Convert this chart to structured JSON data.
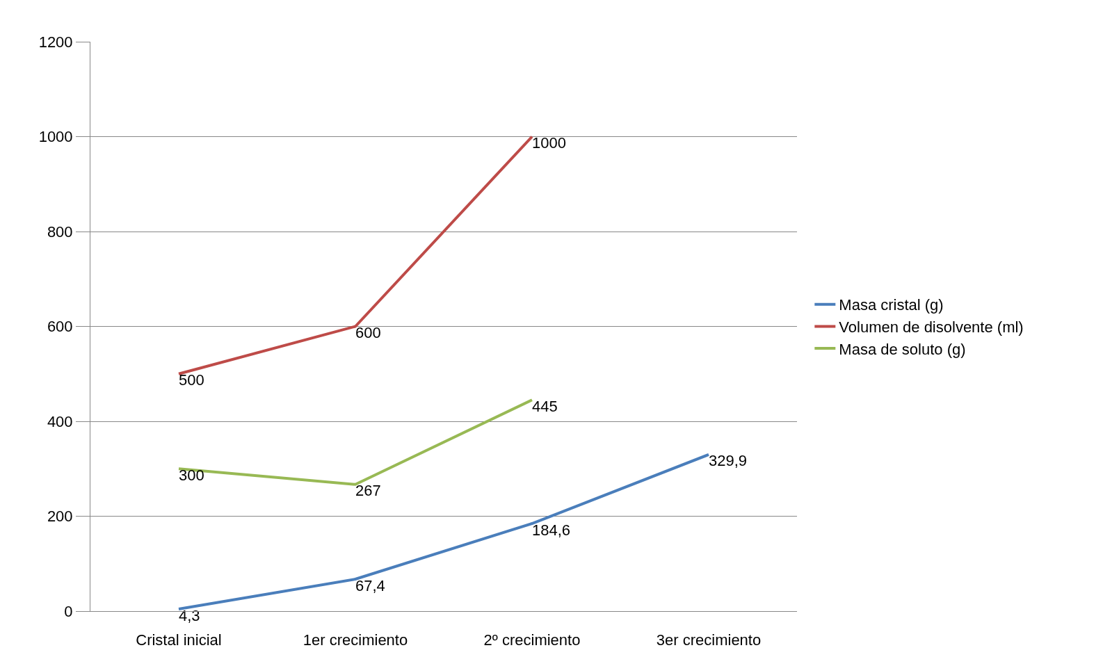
{
  "chart_data": {
    "type": "line",
    "categories": [
      "Cristal inicial",
      "1er crecimiento",
      "2º crecimiento",
      "3er crecimiento"
    ],
    "series": [
      {
        "name": "Masa cristal (g)",
        "color": "#4a7ebb",
        "values": [
          4.3,
          67.4,
          184.6,
          329.9
        ],
        "value_labels": [
          "4,3",
          "67,4",
          "184,6",
          "329,9"
        ]
      },
      {
        "name": "Volumen de disolvente (ml)",
        "color": "#be4b48",
        "values": [
          500,
          600,
          1000,
          null
        ],
        "value_labels": [
          "500",
          "600",
          "1000",
          null
        ]
      },
      {
        "name": "Masa de soluto (g)",
        "color": "#98b954",
        "values": [
          300,
          267,
          445,
          null
        ],
        "value_labels": [
          "300",
          "267",
          "445",
          null
        ]
      }
    ],
    "ylim": [
      0,
      1200
    ],
    "yticks": [
      0,
      200,
      400,
      600,
      800,
      1000,
      1200
    ],
    "grid": "y",
    "legend": "right",
    "marker": "none",
    "line_style": "solid"
  }
}
